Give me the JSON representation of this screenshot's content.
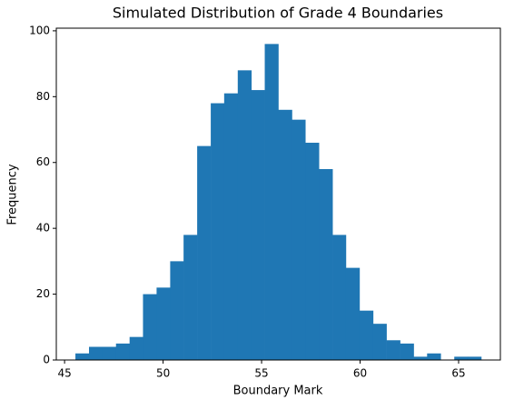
{
  "chart_data": {
    "type": "histogram",
    "title": "Simulated Distribution of Grade 4 Boundaries",
    "x_label": "Boundary Mark",
    "y_label": "Frequency",
    "bins": [
      45.55,
      46.24,
      46.92,
      47.61,
      48.3,
      48.98,
      49.67,
      50.36,
      51.04,
      51.73,
      52.42,
      53.1,
      53.79,
      54.48,
      55.16,
      55.85,
      56.54,
      57.22,
      57.91,
      58.6,
      59.28,
      59.97,
      60.66,
      61.34,
      62.03,
      62.72,
      63.4,
      64.09,
      64.78,
      65.46,
      66.15
    ],
    "counts": [
      2,
      4,
      4,
      5,
      7,
      20,
      22,
      30,
      38,
      65,
      78,
      81,
      88,
      82,
      96,
      76,
      73,
      66,
      58,
      38,
      28,
      15,
      11,
      6,
      5,
      1,
      2,
      0,
      1,
      1
    ],
    "color": "#1f77b4",
    "xlim": [
      44.58,
      67.12
    ],
    "xticks": [
      45,
      50,
      55,
      60,
      65
    ],
    "ylim": [
      0,
      100.8
    ],
    "yticks": [
      0,
      20,
      40,
      60,
      80,
      100
    ]
  }
}
